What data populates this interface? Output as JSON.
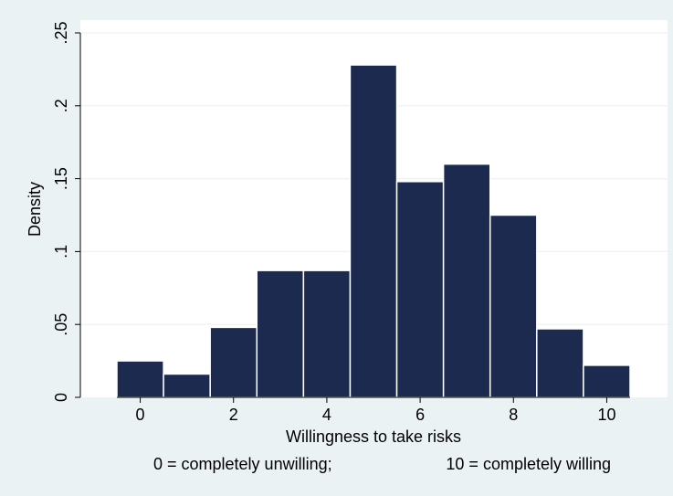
{
  "chart_data": {
    "type": "bar",
    "subtype": "histogram",
    "x": [
      0,
      1,
      2,
      3,
      4,
      5,
      6,
      7,
      8,
      9,
      10
    ],
    "values": [
      0.025,
      0.016,
      0.048,
      0.087,
      0.087,
      0.228,
      0.148,
      0.16,
      0.125,
      0.047,
      0.022
    ],
    "bin_width": 1,
    "xlim": [
      -0.5,
      10.5
    ],
    "ylim": [
      0,
      0.25
    ],
    "xticks": [
      0,
      2,
      4,
      6,
      8,
      10
    ],
    "xtick_labels": [
      "0",
      "2",
      "4",
      "6",
      "8",
      "10"
    ],
    "yticks": [
      0,
      0.05,
      0.1,
      0.15,
      0.2,
      0.25
    ],
    "ytick_labels": [
      "0",
      ".05",
      ".1",
      ".15",
      ".2",
      ".25"
    ],
    "xlabel": "Willingness to take risks",
    "ylabel": "Density",
    "note_left": "0 = completely unwilling;",
    "note_right": "10 = completely willing",
    "grid": true,
    "bar_color": "#1c2a4f",
    "bar_edge_color": "#ffffff",
    "background_color": "#eaf2f3",
    "plot_background_color": "#ffffff",
    "grid_color": "#eaf2f3"
  }
}
